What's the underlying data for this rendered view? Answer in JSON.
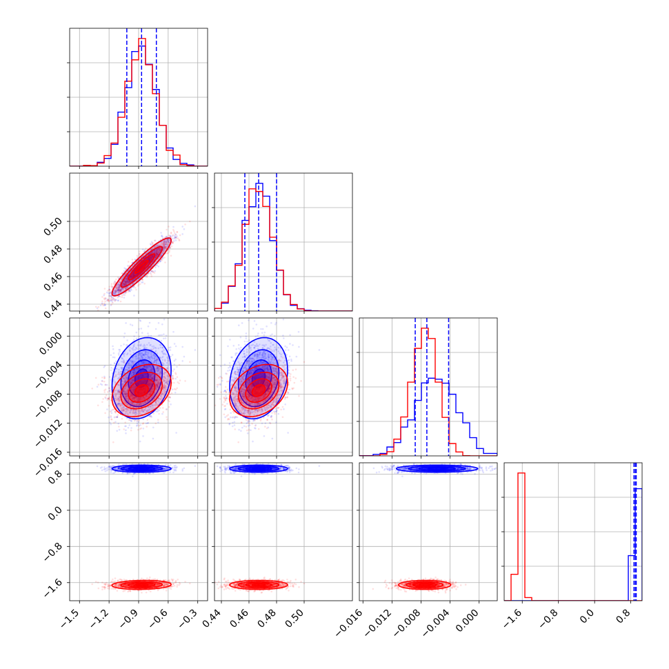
{
  "colors": {
    "series_a": "#0000ff",
    "series_b": "#ff0000",
    "grid": "#b0b0b0"
  },
  "chart_data": {
    "type": "corner",
    "grid": true,
    "series": [
      {
        "color": "#0000ff",
        "means": [
          -0.87,
          0.467,
          -0.0058,
          0.92
        ],
        "sigmas": [
          0.15,
          0.0105,
          0.0028,
          0.04
        ],
        "correlations": [
          [
            0,
            1,
            0.92
          ],
          [
            0,
            2,
            0.2
          ],
          [
            1,
            2,
            0.2
          ]
        ]
      },
      {
        "color": "#ff0000",
        "means": [
          -0.87,
          0.467,
          -0.0075,
          -1.65
        ],
        "sigmas": [
          0.15,
          0.0105,
          0.0018,
          0.05
        ],
        "correlations": [
          [
            0,
            1,
            0.92
          ],
          [
            0,
            2,
            0.3
          ],
          [
            1,
            2,
            0.3
          ],
          [
            0,
            3,
            0.1
          ]
        ]
      }
    ],
    "quantile_lines": {
      "color": "#0000ff",
      "values": [
        [
          -1.02,
          -0.87,
          -0.72
        ],
        [
          0.457,
          0.467,
          0.48
        ],
        [
          -0.0088,
          -0.0072,
          -0.0042
        ],
        [
          0.87,
          0.9,
          0.92
        ]
      ]
    },
    "params": [
      {
        "range": [
          -1.6,
          -0.2
        ],
        "ticks": [
          -1.5,
          -1.2,
          -0.9,
          -0.6,
          -0.3
        ],
        "tick_labels": [
          "−1.5",
          "−1.2",
          "−0.9",
          "−0.6",
          "−0.3"
        ]
      },
      {
        "range": [
          0.435,
          0.535
        ],
        "ticks": [
          0.44,
          0.46,
          0.48,
          0.5
        ],
        "tick_labels": [
          "0.44",
          "0.46",
          "0.48",
          "0.50"
        ]
      },
      {
        "range": [
          -0.0165,
          0.0025
        ],
        "ticks": [
          -0.016,
          -0.012,
          -0.008,
          -0.004,
          0.0
        ],
        "tick_labels": [
          "−0.016",
          "−0.012",
          "−0.008",
          "−0.004",
          "0.000"
        ]
      },
      {
        "range": [
          -2.0,
          1.05
        ],
        "ticks": [
          -1.6,
          -0.8,
          0.0,
          0.8
        ],
        "tick_labels": [
          "−1.6",
          "−0.8",
          "0.0",
          "0.8"
        ]
      }
    ]
  }
}
